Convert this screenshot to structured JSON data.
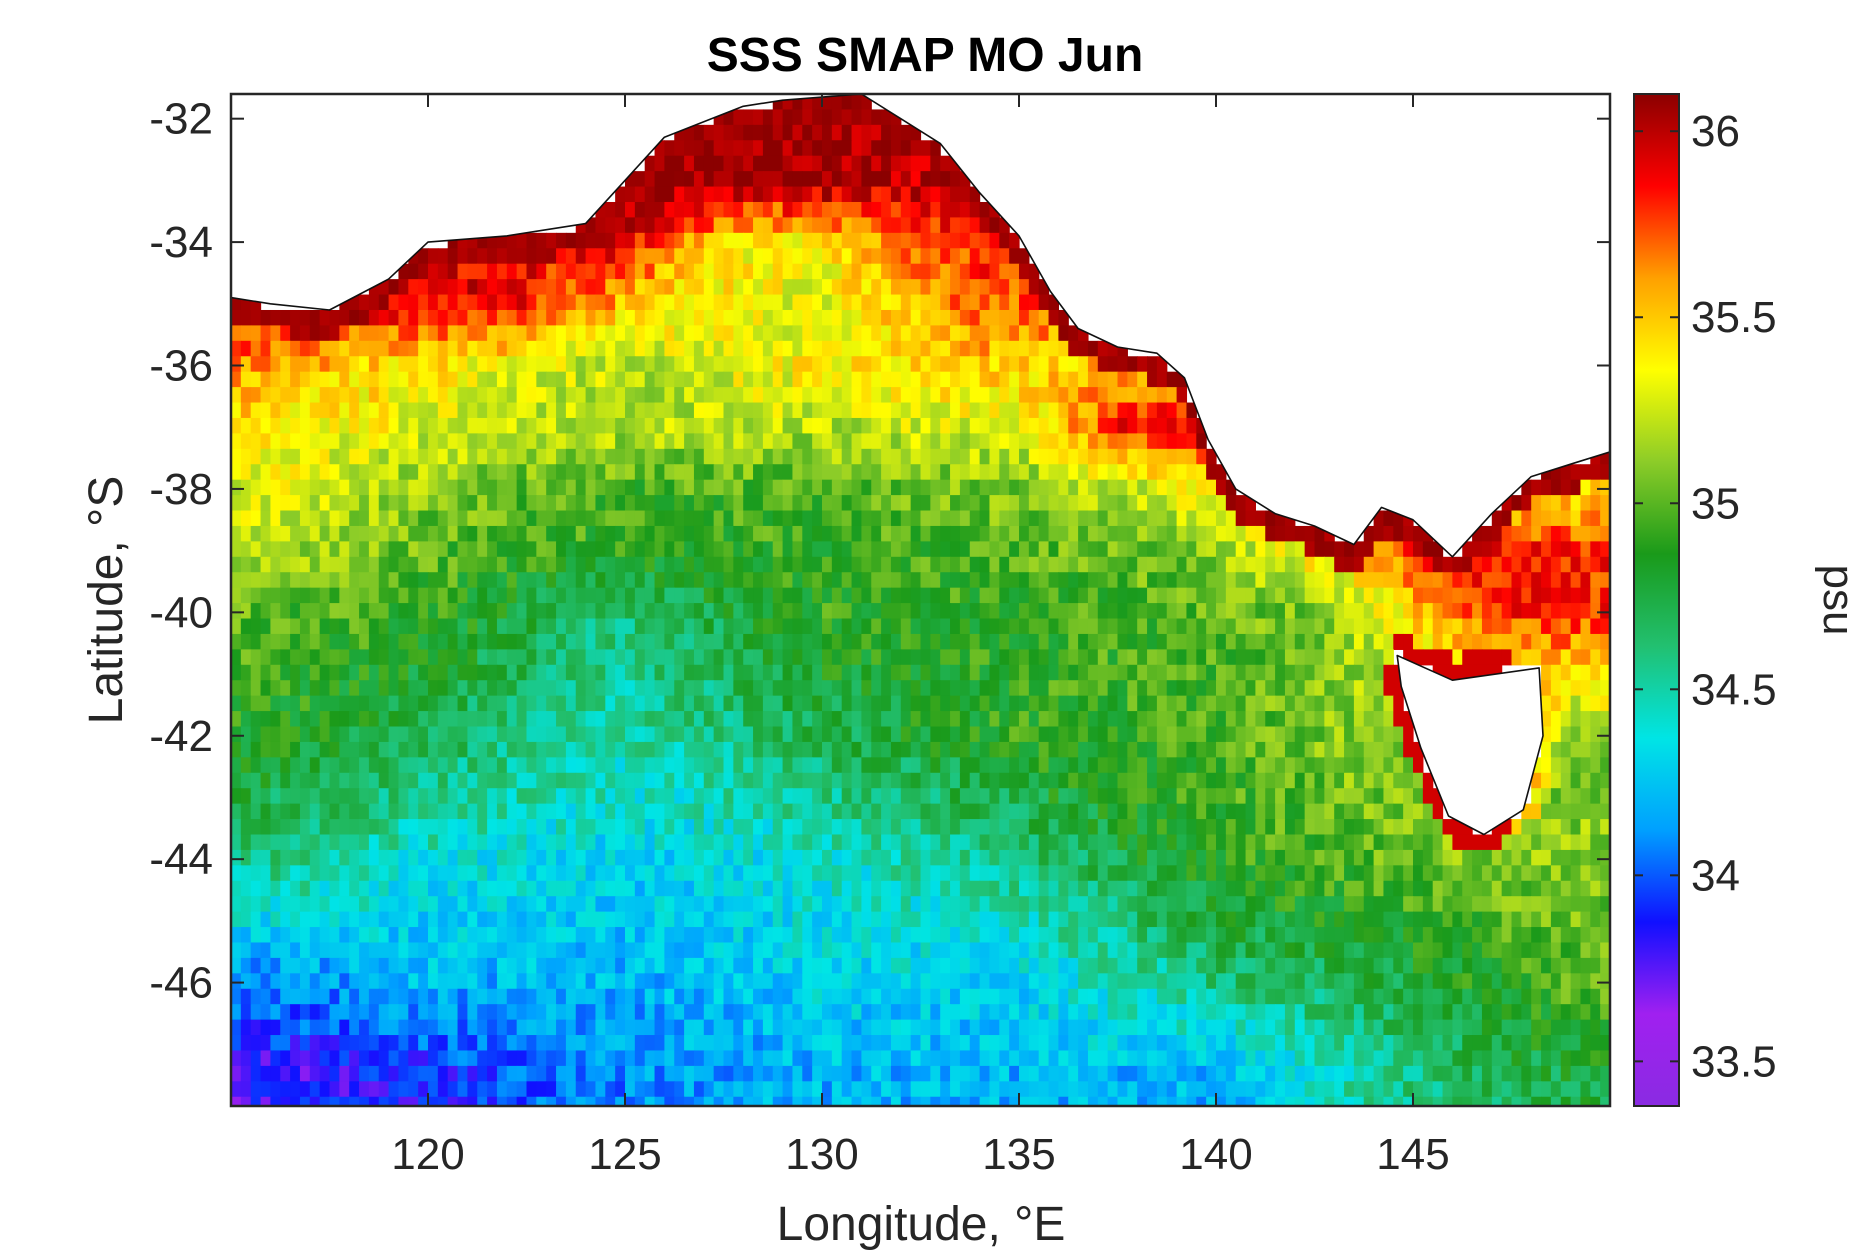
{
  "chart_data": {
    "type": "heatmap",
    "title": "SSS SMAP MO Jun",
    "xlabel": "Longitude, °E",
    "ylabel": "Latitude, °S",
    "colorbar_label": "psu",
    "xlim": [
      115,
      150
    ],
    "ylim": [
      -48,
      -31.6
    ],
    "clim": [
      33.38,
      36.1
    ],
    "x_ticks": [
      120,
      125,
      130,
      135,
      140,
      145
    ],
    "x_tick_labels": [
      "120",
      "125",
      "130",
      "135",
      "140",
      "145"
    ],
    "y_ticks": [
      -32,
      -34,
      -36,
      -38,
      -40,
      -42,
      -44,
      -46
    ],
    "y_tick_labels": [
      "-32",
      "-34",
      "-36",
      "-38",
      "-40",
      "-42",
      "-44",
      "-46"
    ],
    "colorbar_ticks": [
      33.5,
      34,
      34.5,
      35,
      35.5,
      36
    ],
    "colorbar_tick_labels": [
      "33.5",
      "34",
      "34.5",
      "35",
      "35.5",
      "36"
    ],
    "colormap": [
      "#8a2be2",
      "#a020f0",
      "#1010ff",
      "#00a0ff",
      "#00e5e5",
      "#22c070",
      "#1a9a1a",
      "#8ccc28",
      "#ffff00",
      "#ffa000",
      "#ff0000",
      "#8b0000"
    ],
    "grid_resolution_deg": 0.25,
    "salinity_field": [
      {
        "latitude": -33,
        "psu": {
          "128": 36.1,
          "130": 36.1,
          "132": 36.0
        }
      },
      {
        "latitude": -34,
        "psu": {
          "125": 35.9,
          "128": 35.4,
          "130": 35.4,
          "133": 35.8
        }
      },
      {
        "latitude": -35,
        "psu": {
          "118": 35.9,
          "122": 35.9,
          "126": 35.4,
          "130": 35.3,
          "134": 35.7
        }
      },
      {
        "latitude": -36,
        "psu": {
          "116": 35.6,
          "120": 35.4,
          "125": 35.2,
          "130": 35.4,
          "135": 35.5
        }
      },
      {
        "latitude": -37,
        "psu": {
          "116": 35.4,
          "120": 35.3,
          "125": 35.2,
          "130": 35.2,
          "135": 35.3,
          "138": 35.9
        }
      },
      {
        "latitude": -38,
        "psu": {
          "116": 35.3,
          "120": 35.1,
          "124": 34.95,
          "130": 35.0,
          "136": 35.1,
          "140": 35.4
        }
      },
      {
        "latitude": -39,
        "psu": {
          "116": 35.2,
          "120": 35.0,
          "125": 34.9,
          "130": 34.9,
          "135": 35.0,
          "140": 35.1,
          "146": 35.9,
          "149": 35.8
        }
      },
      {
        "latitude": -40,
        "psu": {
          "116": 35.0,
          "120": 34.9,
          "125": 34.6,
          "130": 34.9,
          "135": 34.9,
          "140": 35.0,
          "143": 35.1,
          "147": 35.8
        }
      },
      {
        "latitude": -42,
        "psu": {
          "116": 34.85,
          "120": 34.7,
          "125": 34.5,
          "130": 34.7,
          "135": 34.9,
          "140": 34.95,
          "143": 35.1
        }
      },
      {
        "latitude": -44,
        "psu": {
          "116": 34.6,
          "120": 34.4,
          "125": 34.3,
          "130": 34.4,
          "135": 34.6,
          "140": 34.9,
          "147": 35.1
        }
      },
      {
        "latitude": -46,
        "psu": {
          "116": 34.1,
          "120": 34.2,
          "125": 34.2,
          "130": 34.3,
          "135": 34.3,
          "140": 34.6,
          "145": 34.75,
          "149": 35.0
        }
      },
      {
        "latitude": -47.5,
        "psu": {
          "116": 33.8,
          "120": 33.9,
          "125": 34.1,
          "130": 34.2,
          "135": 34.2,
          "140": 34.2,
          "145": 34.6,
          "149": 34.75
        }
      }
    ],
    "land_mask": {
      "south_coast_of_australia": [
        [
          115,
          -34.9
        ],
        [
          116,
          -35.0
        ],
        [
          117.5,
          -35.1
        ],
        [
          119,
          -34.6
        ],
        [
          120,
          -34.0
        ],
        [
          122,
          -33.9
        ],
        [
          124,
          -33.7
        ],
        [
          125,
          -33.0
        ],
        [
          126,
          -32.3
        ],
        [
          128,
          -31.8
        ],
        [
          129,
          -31.7
        ],
        [
          131,
          -31.6
        ],
        [
          132,
          -32.0
        ],
        [
          133,
          -32.4
        ],
        [
          134,
          -33.2
        ],
        [
          135,
          -33.9
        ],
        [
          135.8,
          -34.8
        ],
        [
          136.5,
          -35.4
        ],
        [
          137.5,
          -35.7
        ],
        [
          138.5,
          -35.8
        ],
        [
          139.2,
          -36.2
        ],
        [
          139.8,
          -37.2
        ],
        [
          140.5,
          -38.0
        ],
        [
          141.5,
          -38.4
        ],
        [
          142.5,
          -38.6
        ],
        [
          143.5,
          -38.9
        ],
        [
          144.2,
          -38.3
        ],
        [
          145,
          -38.5
        ],
        [
          146,
          -39.1
        ],
        [
          147,
          -38.4
        ],
        [
          148,
          -37.8
        ],
        [
          149,
          -37.6
        ],
        [
          150,
          -37.4
        ]
      ],
      "tasmania": [
        [
          144.6,
          -40.7
        ],
        [
          146,
          -41.1
        ],
        [
          148.2,
          -40.9
        ],
        [
          148.3,
          -42.0
        ],
        [
          147.8,
          -43.2
        ],
        [
          146.8,
          -43.6
        ],
        [
          145.9,
          -43.3
        ],
        [
          145.2,
          -42.2
        ],
        [
          144.7,
          -41.2
        ]
      ]
    }
  }
}
